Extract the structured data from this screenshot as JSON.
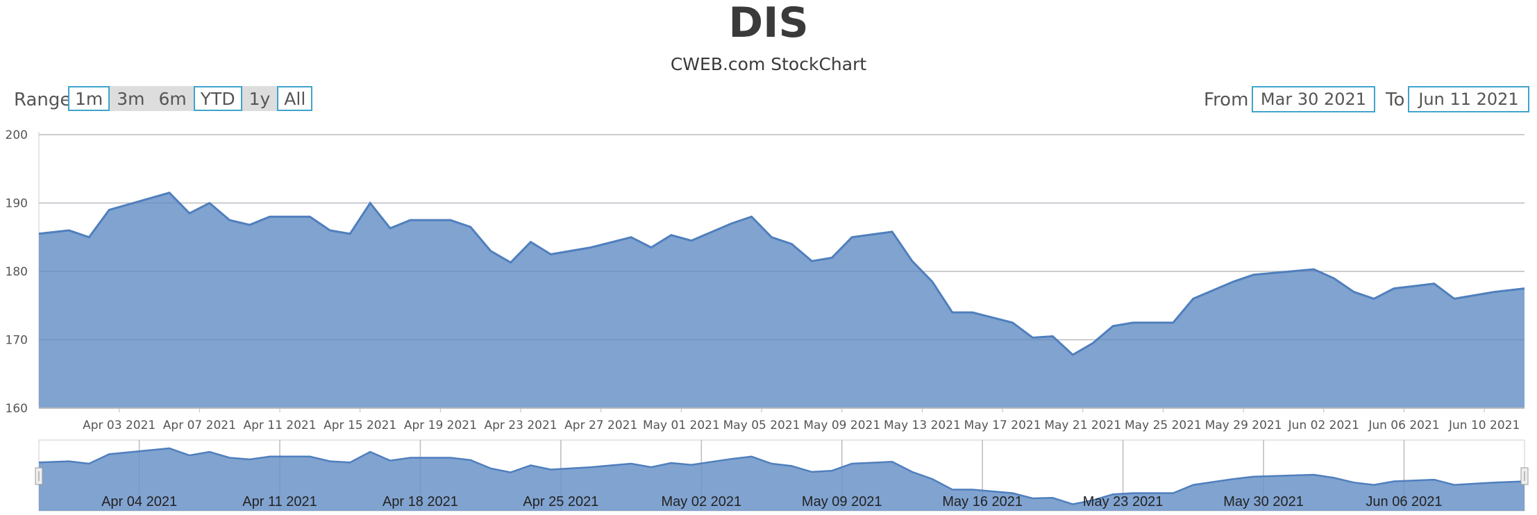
{
  "title": "DIS",
  "subtitle": "CWEB.com StockChart",
  "range": {
    "label": "Range",
    "buttons": [
      {
        "label": "1m",
        "selected": false
      },
      {
        "label": "3m",
        "selected": true
      },
      {
        "label": "6m",
        "selected": true
      },
      {
        "label": "YTD",
        "selected": false
      },
      {
        "label": "1y",
        "selected": true
      },
      {
        "label": "All",
        "selected": false
      }
    ]
  },
  "date_range": {
    "from_label": "From",
    "from_value": "Mar 30 2021",
    "to_label": "To",
    "to_value": "Jun 11 2021"
  },
  "chart_data": {
    "type": "area",
    "title": "DIS",
    "subtitle": "CWEB.com StockChart",
    "series_color": "#6b93c8",
    "line_color": "#4f7fbd",
    "ylim": [
      160,
      200
    ],
    "yticks": [
      160,
      170,
      180,
      190,
      200
    ],
    "grid": true,
    "xlim": [
      "2021-03-30",
      "2021-06-11"
    ],
    "xtick_labels": [
      "Apr 03 2021",
      "Apr 07 2021",
      "Apr 11 2021",
      "Apr 15 2021",
      "Apr 19 2021",
      "Apr 23 2021",
      "Apr 27 2021",
      "May 01 2021",
      "May 05 2021",
      "May 09 2021",
      "May 13 2021",
      "May 17 2021",
      "May 21 2021",
      "May 25 2021",
      "May 29 2021",
      "Jun 02 2021",
      "Jun 06 2021",
      "Jun 10 2021"
    ],
    "points": [
      [
        "2021-03-30",
        185.5
      ],
      [
        "2021-03-31",
        186.0
      ],
      [
        "2021-04-01",
        185.0
      ],
      [
        "2021-04-02",
        189.0
      ],
      [
        "2021-04-05",
        191.5
      ],
      [
        "2021-04-06",
        188.5
      ],
      [
        "2021-04-07",
        190.0
      ],
      [
        "2021-04-08",
        187.5
      ],
      [
        "2021-04-09",
        186.8
      ],
      [
        "2021-04-10",
        188.0
      ],
      [
        "2021-04-12",
        188.0
      ],
      [
        "2021-04-13",
        186.0
      ],
      [
        "2021-04-14",
        185.5
      ],
      [
        "2021-04-15",
        190.0
      ],
      [
        "2021-04-16",
        186.3
      ],
      [
        "2021-04-17",
        187.5
      ],
      [
        "2021-04-19",
        187.5
      ],
      [
        "2021-04-20",
        186.5
      ],
      [
        "2021-04-21",
        183.0
      ],
      [
        "2021-04-22",
        181.3
      ],
      [
        "2021-04-23",
        184.3
      ],
      [
        "2021-04-24",
        182.5
      ],
      [
        "2021-04-26",
        183.5
      ],
      [
        "2021-04-28",
        185.0
      ],
      [
        "2021-04-29",
        183.5
      ],
      [
        "2021-04-30",
        185.3
      ],
      [
        "2021-05-01",
        184.5
      ],
      [
        "2021-05-03",
        187.0
      ],
      [
        "2021-05-04",
        188.0
      ],
      [
        "2021-05-05",
        185.0
      ],
      [
        "2021-05-06",
        184.0
      ],
      [
        "2021-05-07",
        181.5
      ],
      [
        "2021-05-08",
        182.0
      ],
      [
        "2021-05-09",
        185.0
      ],
      [
        "2021-05-11",
        185.8
      ],
      [
        "2021-05-12",
        181.5
      ],
      [
        "2021-05-13",
        178.5
      ],
      [
        "2021-05-14",
        174.0
      ],
      [
        "2021-05-15",
        174.0
      ],
      [
        "2021-05-17",
        172.5
      ],
      [
        "2021-05-18",
        170.3
      ],
      [
        "2021-05-19",
        170.5
      ],
      [
        "2021-05-20",
        167.8
      ],
      [
        "2021-05-21",
        169.5
      ],
      [
        "2021-05-22",
        172.0
      ],
      [
        "2021-05-23",
        172.5
      ],
      [
        "2021-05-25",
        172.5
      ],
      [
        "2021-05-26",
        176.0
      ],
      [
        "2021-05-28",
        178.5
      ],
      [
        "2021-05-29",
        179.5
      ],
      [
        "2021-06-01",
        180.3
      ],
      [
        "2021-06-02",
        179.0
      ],
      [
        "2021-06-03",
        177.0
      ],
      [
        "2021-06-04",
        176.0
      ],
      [
        "2021-06-05",
        177.5
      ],
      [
        "2021-06-07",
        178.2
      ],
      [
        "2021-06-08",
        176.0
      ],
      [
        "2021-06-09",
        176.5
      ],
      [
        "2021-06-10",
        177.0
      ],
      [
        "2021-06-11",
        177.5
      ]
    ],
    "navigator": {
      "xtick_labels": [
        "Apr 04 2021",
        "Apr 11 2021",
        "Apr 18 2021",
        "Apr 25 2021",
        "May 02 2021",
        "May 09 2021",
        "May 16 2021",
        "May 23 2021",
        "May 30 2021",
        "Jun 06 2021"
      ]
    }
  }
}
